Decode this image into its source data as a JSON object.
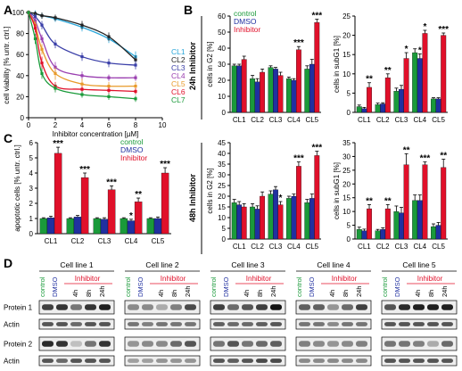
{
  "colors": {
    "control": "#1a9a3a",
    "dmso": "#2030a0",
    "inhibitor": "#e0102a",
    "axis": "#000000",
    "error": "#000000"
  },
  "panels": {
    "A": "A",
    "B": "B",
    "C": "C",
    "D": "D"
  },
  "sidelabels": {
    "h24": "24h Inhibitor",
    "h48": "48h Inhibitor"
  },
  "legend": {
    "control": "control",
    "dmso": "DMSO",
    "inhibitor": "Inhibitor"
  },
  "stars": {
    "s1": "*",
    "s2": "**",
    "s3": "***"
  },
  "blot": {
    "cell_lines": [
      "Cell line 1",
      "Cell line 2",
      "Cell line 3",
      "Cell line 4",
      "Cell line 5"
    ],
    "lanes": [
      "control",
      "DMSO",
      "4h",
      "8h",
      "24h"
    ],
    "group_labels": {
      "control": "control",
      "dmso": "DMSO",
      "inhibitor": "Inhibitor"
    },
    "rows": [
      "Protein 1",
      "Actin",
      "Protein 2",
      "Actin"
    ]
  },
  "chart_data": [
    {
      "id": "A",
      "type": "line",
      "xlabel": "Inhibitor concentration [µM]",
      "ylabel": "cell viability [% untr. ctrl.]",
      "xlim": [
        0,
        10
      ],
      "ylim": [
        0,
        100
      ],
      "xticks": [
        "0",
        "2",
        "4",
        "6",
        "8",
        "10"
      ],
      "yticks": [
        "0",
        "20",
        "40",
        "60",
        "80",
        "100"
      ],
      "legend_position": "right",
      "series": [
        {
          "name": "CL1",
          "color": "#29a6d9",
          "x": [
            0,
            0.5,
            1,
            2,
            4,
            6,
            8
          ],
          "y": [
            100,
            99,
            97,
            94,
            86,
            75,
            58
          ],
          "err": [
            2,
            3,
            3,
            3,
            4,
            4,
            5
          ]
        },
        {
          "name": "CL2",
          "color": "#222222",
          "x": [
            0,
            0.5,
            1,
            2,
            4,
            6,
            8
          ],
          "y": [
            100,
            99,
            97,
            95,
            88,
            77,
            55
          ],
          "err": [
            2,
            2,
            3,
            3,
            4,
            4,
            4
          ]
        },
        {
          "name": "CL3",
          "color": "#3a3fa8",
          "x": [
            0,
            0.5,
            1,
            2,
            4,
            6,
            8
          ],
          "y": [
            100,
            96,
            88,
            70,
            58,
            52,
            50
          ],
          "err": [
            2,
            3,
            4,
            4,
            4,
            4,
            4
          ]
        },
        {
          "name": "CL4",
          "color": "#9a3fb0",
          "x": [
            0,
            0.5,
            1,
            2,
            4,
            6,
            8
          ],
          "y": [
            100,
            92,
            75,
            48,
            40,
            38,
            38
          ],
          "err": [
            2,
            3,
            4,
            5,
            4,
            3,
            3
          ]
        },
        {
          "name": "CL5",
          "color": "#e89a2a",
          "x": [
            0,
            0.5,
            1,
            2,
            4,
            6,
            8
          ],
          "y": [
            100,
            88,
            65,
            42,
            32,
            30,
            30
          ],
          "err": [
            2,
            4,
            5,
            6,
            5,
            4,
            4
          ]
        },
        {
          "name": "CL6",
          "color": "#e0102a",
          "x": [
            0,
            0.5,
            1,
            2,
            4,
            6,
            8
          ],
          "y": [
            100,
            85,
            52,
            30,
            27,
            26,
            25
          ],
          "err": [
            2,
            4,
            6,
            4,
            3,
            3,
            3
          ]
        },
        {
          "name": "CL7",
          "color": "#1a9a3a",
          "x": [
            0,
            0.5,
            1,
            2,
            4,
            6,
            8
          ],
          "y": [
            100,
            75,
            42,
            28,
            22,
            20,
            18
          ],
          "err": [
            2,
            5,
            5,
            4,
            3,
            3,
            3
          ]
        }
      ]
    },
    {
      "id": "B_G2_24h",
      "type": "bar",
      "ylabel": "cells in G2 [%]",
      "categories": [
        "CL1",
        "CL2",
        "CL3",
        "CL4",
        "CL5"
      ],
      "ylim": [
        0,
        60
      ],
      "yticks": [
        "0",
        "10",
        "20",
        "30",
        "40",
        "50",
        "60"
      ],
      "legend_position": "top-left",
      "series": [
        {
          "name": "control",
          "values": [
            29,
            21,
            28,
            21,
            27
          ],
          "err": [
            1,
            2,
            1,
            1,
            2
          ]
        },
        {
          "name": "DMSO",
          "values": [
            29,
            19,
            27,
            20,
            30
          ],
          "err": [
            1,
            2,
            1,
            1,
            3
          ]
        },
        {
          "name": "Inhibitor",
          "values": [
            33,
            25,
            23,
            39,
            56
          ],
          "err": [
            2,
            2,
            2,
            2,
            2
          ]
        }
      ],
      "annotations": [
        "",
        "",
        "",
        "***",
        "***"
      ]
    },
    {
      "id": "B_subG1_24h",
      "type": "bar",
      "ylabel": "cells in subG1 [%]",
      "categories": [
        "CL1",
        "CL2",
        "CL3",
        "CL4",
        "CL5"
      ],
      "ylim": [
        0,
        25
      ],
      "yticks": [
        "0",
        "5",
        "10",
        "15",
        "20",
        "25"
      ],
      "series": [
        {
          "name": "control",
          "values": [
            1.5,
            2.0,
            5.5,
            15.5,
            3.5
          ],
          "err": [
            0.4,
            0.4,
            0.8,
            1.0,
            0.3
          ]
        },
        {
          "name": "DMSO",
          "values": [
            1.0,
            2.2,
            6.0,
            14.0,
            3.5
          ],
          "err": [
            0.3,
            0.3,
            1.0,
            1.2,
            0.3
          ]
        },
        {
          "name": "Inhibitor",
          "values": [
            6.5,
            9.0,
            14.0,
            20.5,
            20.0
          ],
          "err": [
            1.2,
            1.0,
            1.5,
            0.8,
            0.6
          ]
        }
      ],
      "annotations": [
        "**",
        "**",
        "*",
        "*",
        "***"
      ],
      "extra_annotations": [
        {
          "category": "CL4",
          "series": "DMSO",
          "text": "*"
        }
      ]
    },
    {
      "id": "C",
      "type": "bar",
      "ylabel": "apoptotic cells [% untr. ctrl.]",
      "categories": [
        "CL1",
        "CL2",
        "CL3",
        "CL4",
        "CL5"
      ],
      "ylim": [
        0,
        6
      ],
      "yticks": [
        "0",
        "1",
        "2",
        "3",
        "4",
        "5",
        "6"
      ],
      "legend_position": "top-right",
      "series": [
        {
          "name": "control",
          "values": [
            1.0,
            1.0,
            1.0,
            1.0,
            1.0
          ],
          "err": [
            0.05,
            0.05,
            0.05,
            0.05,
            0.05
          ]
        },
        {
          "name": "DMSO",
          "values": [
            1.05,
            1.1,
            0.95,
            0.85,
            1.0
          ],
          "err": [
            0.1,
            0.1,
            0.1,
            0.1,
            0.1
          ]
        },
        {
          "name": "Inhibitor",
          "values": [
            5.3,
            3.7,
            2.9,
            2.1,
            4.0
          ],
          "err": [
            0.4,
            0.3,
            0.25,
            0.25,
            0.35
          ]
        }
      ],
      "annotations": [
        "***",
        "***",
        "***",
        "**",
        "***"
      ],
      "extra_annotations": [
        {
          "category": "CL4",
          "series": "DMSO",
          "text": "*"
        }
      ]
    },
    {
      "id": "B_G2_48h",
      "type": "bar",
      "ylabel": "cells in G2 [%]",
      "categories": [
        "CL1",
        "CL2",
        "CL3",
        "CL4",
        "CL5"
      ],
      "ylim": [
        0,
        45
      ],
      "yticks": [
        "0",
        "5",
        "10",
        "15",
        "20",
        "25",
        "30",
        "35",
        "40",
        "45"
      ],
      "series": [
        {
          "name": "control",
          "values": [
            17,
            15,
            21,
            19,
            17
          ],
          "err": [
            1.5,
            1.5,
            1.5,
            1.0,
            1.5
          ]
        },
        {
          "name": "DMSO",
          "values": [
            16,
            14,
            23,
            20,
            19
          ],
          "err": [
            1.5,
            1.5,
            1.5,
            1.0,
            2.0
          ]
        },
        {
          "name": "Inhibitor",
          "values": [
            15,
            20,
            16,
            34,
            39
          ],
          "err": [
            1.5,
            2.0,
            1.5,
            2.0,
            2.0
          ]
        }
      ],
      "annotations": [
        "",
        "",
        "*",
        "***",
        "***"
      ]
    },
    {
      "id": "B_subG1_48h",
      "type": "bar",
      "ylabel": "cells in subG1 [%]",
      "categories": [
        "CL1",
        "CL2",
        "CL3",
        "CL4",
        "CL5"
      ],
      "ylim": [
        0,
        35
      ],
      "yticks": [
        "0",
        "5",
        "10",
        "15",
        "20",
        "25",
        "30",
        "35"
      ],
      "series": [
        {
          "name": "control",
          "values": [
            3.5,
            3.0,
            10,
            14,
            4.5
          ],
          "err": [
            0.8,
            0.5,
            2.0,
            2.0,
            1.0
          ]
        },
        {
          "name": "DMSO",
          "values": [
            3.0,
            3.5,
            9.5,
            14,
            5.0
          ],
          "err": [
            0.6,
            0.6,
            2.0,
            2.0,
            1.0
          ]
        },
        {
          "name": "Inhibitor",
          "values": [
            11,
            11,
            27,
            27,
            26
          ],
          "err": [
            1.5,
            1.5,
            4.0,
            1.0,
            3.0
          ]
        }
      ],
      "annotations": [
        "**",
        "**",
        "**",
        "***",
        "**"
      ]
    }
  ]
}
